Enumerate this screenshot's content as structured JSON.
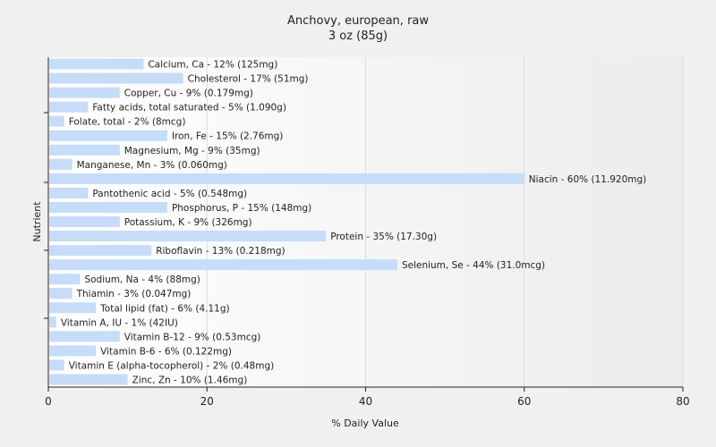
{
  "chart_data": {
    "type": "bar",
    "orientation": "horizontal",
    "title": "Anchovy, european, raw",
    "subtitle": "3 oz (85g)",
    "xlabel": "% Daily Value",
    "ylabel": "Nutrient",
    "xlim": [
      0,
      80
    ],
    "xticks": [
      "0",
      "20",
      "40",
      "60",
      "80"
    ],
    "grid": true,
    "bar_color": "#c6dcf8",
    "background_gradient": [
      "#ffffff",
      "#ececec"
    ],
    "categories": [
      "Calcium, Ca",
      "Cholesterol",
      "Copper, Cu",
      "Fatty acids, total saturated",
      "Folate, total",
      "Iron, Fe",
      "Magnesium, Mg",
      "Manganese, Mn",
      "Niacin",
      "Pantothenic acid",
      "Phosphorus, P",
      "Potassium, K",
      "Protein",
      "Riboflavin",
      "Selenium, Se",
      "Sodium, Na",
      "Thiamin",
      "Total lipid (fat)",
      "Vitamin A, IU",
      "Vitamin B-12",
      "Vitamin B-6",
      "Vitamin E (alpha-tocopherol)",
      "Zinc, Zn"
    ],
    "values": [
      12,
      17,
      9,
      5,
      2,
      15,
      9,
      3,
      60,
      5,
      15,
      9,
      35,
      13,
      44,
      4,
      3,
      6,
      1,
      9,
      6,
      2,
      10
    ],
    "labels": [
      "Calcium, Ca - 12% (125mg)",
      "Cholesterol - 17% (51mg)",
      "Copper, Cu - 9% (0.179mg)",
      "Fatty acids, total saturated - 5% (1.090g)",
      "Folate, total - 2% (8mcg)",
      "Iron, Fe - 15% (2.76mg)",
      "Magnesium, Mg - 9% (35mg)",
      "Manganese, Mn - 3% (0.060mg)",
      "Niacin - 60% (11.920mg)",
      "Pantothenic acid - 5% (0.548mg)",
      "Phosphorus, P - 15% (148mg)",
      "Potassium, K - 9% (326mg)",
      "Protein - 35% (17.30g)",
      "Riboflavin - 13% (0.218mg)",
      "Selenium, Se - 44% (31.0mcg)",
      "Sodium, Na - 4% (88mg)",
      "Thiamin - 3% (0.047mg)",
      "Total lipid (fat) - 6% (4.11g)",
      "Vitamin A, IU - 1% (42IU)",
      "Vitamin B-12 - 9% (0.53mcg)",
      "Vitamin B-6 - 6% (0.122mg)",
      "Vitamin E (alpha-tocopherol) - 2% (0.48mg)",
      "Zinc, Zn - 10% (1.46mg)"
    ]
  }
}
